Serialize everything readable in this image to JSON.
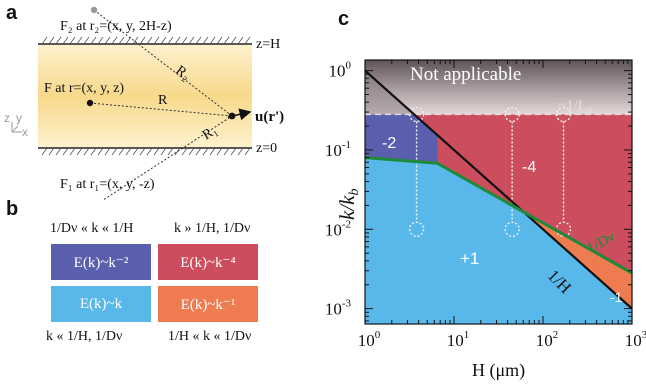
{
  "panels": {
    "a": "a",
    "b": "b",
    "c": "c"
  },
  "panel_a": {
    "top_image": {
      "label": "F₂ at r₂=(x, y, 2H-z)"
    },
    "source": {
      "label": "F at r=(x, y, z)"
    },
    "bottom_image": {
      "label": "F₁ at r₁=(x, y, -z)"
    },
    "boundary_top": "z=H",
    "boundary_bottom": "z=0",
    "vec_R2": "R₂",
    "vec_R": "R",
    "vec_R1": "R₁",
    "field": "u(r')",
    "axes": {
      "z": "z",
      "y": "y",
      "x": "x"
    },
    "colors": {
      "slab_top": "#fdf2d0",
      "slab_mid": "#f8d98a"
    }
  },
  "panel_b": {
    "caption_tl": "1/Dν « k « 1/H",
    "caption_tr": "k » 1/H, 1/Dν",
    "caption_bl": "k « 1/H, 1/Dν",
    "caption_br": "1/H « k « 1/Dν",
    "tiles": [
      {
        "text": "E(k)~k⁻²",
        "color": "#5a5fad"
      },
      {
        "text": "E(k)~k⁻⁴",
        "color": "#cc4d5d"
      },
      {
        "text": "E(k)~k",
        "color": "#58b8ea"
      },
      {
        "text": "E(k)~k⁻¹",
        "color": "#ef7c50"
      }
    ]
  },
  "chart_data": {
    "type": "area",
    "xlabel": "H (μm)",
    "ylabel": "k/k_b",
    "xscale": "log",
    "yscale": "log",
    "xlim": [
      1,
      1000
    ],
    "ylim": [
      0.00064,
      1.36
    ],
    "x_ticks": [
      {
        "value": 1,
        "base": "10",
        "exp": "0"
      },
      {
        "value": 10,
        "base": "10",
        "exp": "1"
      },
      {
        "value": 100,
        "base": "10",
        "exp": "2"
      },
      {
        "value": 1000,
        "base": "10",
        "exp": "3"
      }
    ],
    "y_ticks": [
      {
        "value": 1,
        "base": "10",
        "exp": "0"
      },
      {
        "value": 0.1,
        "base": "10",
        "exp": "-1"
      },
      {
        "value": 0.01,
        "base": "10",
        "exp": "-2"
      },
      {
        "value": 0.001,
        "base": "10",
        "exp": "-3"
      }
    ],
    "lines": {
      "one_over_H": {
        "label": "1/H",
        "x": [
          1,
          1000
        ],
        "y": [
          1,
          0.001
        ],
        "color": "#111111"
      },
      "one_over_Dv": {
        "label": "1/Dν",
        "x": [
          1,
          6.5,
          1000
        ],
        "y": [
          0.08,
          0.068,
          0.0028
        ],
        "color": "#1f8a3a"
      },
      "one_over_Lb": {
        "label": "~1/L_b",
        "y": 0.28,
        "color": "#e9dfe0"
      }
    },
    "regions": [
      {
        "label": "Not applicable",
        "exponent": "",
        "color": "#7a6a6e"
      },
      {
        "label": "-2",
        "exponent": "-2",
        "color": "#5a5fad"
      },
      {
        "label": "-4",
        "exponent": "-4",
        "color": "#cc4d5d"
      },
      {
        "label": "+1",
        "exponent": "+1",
        "color": "#58b8ea"
      },
      {
        "label": "-1",
        "exponent": "-1",
        "color": "#ef7c50"
      }
    ],
    "markers": [
      {
        "x": 3.8,
        "y_top": 0.28,
        "y_bottom": 0.01
      },
      {
        "x": 45,
        "y_top": 0.28,
        "y_bottom": 0.01
      },
      {
        "x": 170,
        "y_top": 0.28,
        "y_bottom": 0.01
      }
    ]
  }
}
